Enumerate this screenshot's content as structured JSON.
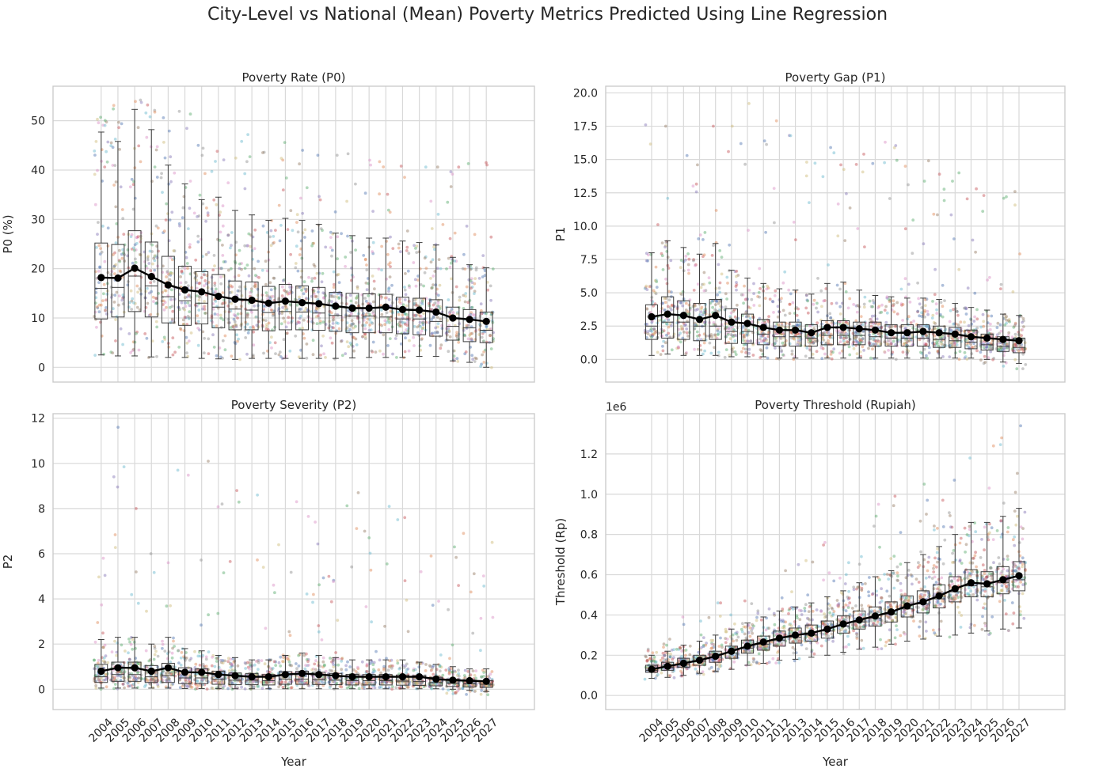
{
  "figure": {
    "title": "City-Level vs National (Mean) Poverty Metrics Predicted Using Line Regression"
  },
  "chart_data": [
    {
      "type": "box",
      "title": "Poverty Rate (P0)",
      "xlabel": "",
      "ylabel": "P0 (%)",
      "ylim": [
        -3,
        57
      ],
      "yticks": [
        0,
        10,
        20,
        30,
        40,
        50
      ],
      "ytick_labels": [
        "0",
        "10",
        "20",
        "30",
        "40",
        "50"
      ],
      "show_x_ticklabels": false,
      "offset_text": "",
      "categories": [
        "2004",
        "2005",
        "2006",
        "2007",
        "2008",
        "2009",
        "2010",
        "2011",
        "2012",
        "2013",
        "2014",
        "2015",
        "2016",
        "2017",
        "2018",
        "2019",
        "2020",
        "2021",
        "2022",
        "2023",
        "2024",
        "2025",
        "2026",
        "2027"
      ],
      "mean": [
        18.2,
        18.1,
        20.1,
        18.4,
        16.7,
        15.7,
        15.3,
        14.4,
        13.8,
        13.6,
        13.0,
        13.4,
        13.1,
        12.9,
        12.4,
        12.0,
        12.0,
        12.2,
        11.7,
        11.6,
        11.2,
        10.0,
        9.7,
        9.3
      ],
      "median": [
        16.0,
        16.2,
        18.5,
        16.5,
        14.3,
        13.5,
        13.0,
        12.2,
        11.8,
        11.6,
        11.1,
        11.3,
        11.2,
        11.0,
        10.5,
        10.4,
        10.4,
        10.2,
        9.8,
        9.8,
        9.3,
        8.3,
        8.0,
        7.5
      ],
      "q1": [
        9.8,
        10.2,
        11.3,
        10.2,
        9.0,
        8.5,
        8.8,
        8.0,
        7.6,
        7.6,
        7.4,
        7.6,
        7.6,
        7.5,
        7.3,
        7.0,
        7.0,
        7.0,
        6.8,
        6.6,
        6.3,
        5.5,
        5.2,
        5.0
      ],
      "q3": [
        25.2,
        24.9,
        27.7,
        25.4,
        22.5,
        20.5,
        19.4,
        18.8,
        17.5,
        17.3,
        16.4,
        16.8,
        16.5,
        16.2,
        15.2,
        15.0,
        14.9,
        14.8,
        14.2,
        14.0,
        13.7,
        12.2,
        11.7,
        11.2
      ],
      "whislo": [
        2.5,
        2.3,
        2.3,
        2.1,
        2.0,
        2.0,
        1.8,
        1.7,
        1.6,
        1.8,
        1.8,
        1.8,
        1.8,
        1.8,
        1.8,
        1.9,
        2.0,
        2.0,
        2.0,
        2.2,
        2.2,
        1.3,
        1.0,
        0.0
      ],
      "whishi": [
        47.7,
        45.8,
        52.3,
        48.2,
        41.0,
        37.2,
        34.0,
        34.5,
        31.8,
        30.9,
        29.8,
        30.2,
        29.8,
        29.0,
        27.2,
        26.7,
        26.2,
        26.2,
        25.6,
        25.3,
        24.8,
        22.3,
        20.8,
        20.2
      ],
      "spread_lo": [
        2.2,
        2.1,
        2.1,
        1.9,
        1.9,
        1.8,
        1.7,
        1.6,
        1.5,
        1.6,
        1.6,
        1.6,
        1.6,
        1.6,
        1.6,
        1.8,
        1.9,
        1.9,
        1.9,
        2.0,
        2.0,
        1.0,
        0.8,
        -0.3
      ],
      "spread_hi": [
        50.7,
        53.1,
        54.2,
        53.2,
        50.6,
        51.9,
        45.0,
        43.8,
        45.8,
        47.2,
        43.6,
        45.6,
        44.0,
        43.0,
        43.0,
        43.3,
        42.0,
        41.7,
        40.8,
        40.6,
        40.6,
        40.6,
        41.3,
        41.5
      ]
    },
    {
      "type": "box",
      "title": "Poverty Gap (P1)",
      "xlabel": "",
      "ylabel": "P1",
      "ylim": [
        -1.7,
        20.5
      ],
      "yticks": [
        0,
        2.5,
        5,
        7.5,
        10,
        12.5,
        15,
        17.5,
        20
      ],
      "ytick_labels": [
        "0.0",
        "2.5",
        "5.0",
        "7.5",
        "10.0",
        "12.5",
        "15.0",
        "17.5",
        "20.0"
      ],
      "show_x_ticklabels": false,
      "offset_text": "",
      "categories": [
        "2004",
        "2005",
        "2006",
        "2007",
        "2008",
        "2009",
        "2010",
        "2011",
        "2012",
        "2013",
        "2014",
        "2015",
        "2016",
        "2017",
        "2018",
        "2019",
        "2020",
        "2021",
        "2022",
        "2023",
        "2024",
        "2025",
        "2026",
        "2027"
      ],
      "mean": [
        3.2,
        3.4,
        3.3,
        3.0,
        3.3,
        2.8,
        2.7,
        2.4,
        2.2,
        2.2,
        2.0,
        2.4,
        2.4,
        2.3,
        2.2,
        2.0,
        2.0,
        2.1,
        2.0,
        1.9,
        1.7,
        1.6,
        1.5,
        1.4
      ],
      "median": [
        2.5,
        2.8,
        2.8,
        2.5,
        2.5,
        2.1,
        2.1,
        1.9,
        1.7,
        1.7,
        1.6,
        1.8,
        1.8,
        1.8,
        1.7,
        1.6,
        1.6,
        1.6,
        1.5,
        1.4,
        1.3,
        1.1,
        1.0,
        0.9
      ],
      "q1": [
        1.5,
        1.6,
        1.5,
        1.4,
        1.5,
        1.2,
        1.2,
        1.1,
        1.0,
        1.0,
        1.0,
        1.1,
        1.1,
        1.1,
        1.0,
        1.0,
        1.0,
        1.0,
        0.9,
        0.9,
        0.8,
        0.7,
        0.6,
        0.5
      ],
      "q3": [
        4.1,
        4.7,
        4.4,
        4.2,
        4.5,
        3.8,
        3.4,
        3.0,
        2.8,
        2.8,
        2.6,
        2.9,
        2.9,
        2.8,
        2.8,
        2.6,
        2.6,
        2.6,
        2.5,
        2.4,
        2.2,
        1.9,
        1.7,
        1.6
      ],
      "whislo": [
        0.3,
        0.4,
        0.3,
        0.3,
        0.3,
        0.2,
        0.2,
        0.2,
        0.1,
        0.1,
        0.1,
        0.1,
        0.1,
        0.1,
        0.1,
        0.1,
        0.1,
        0.1,
        0.1,
        0.1,
        0.1,
        0.0,
        -0.2,
        -0.3
      ],
      "whishi": [
        8.0,
        8.9,
        8.4,
        7.9,
        8.7,
        6.7,
        6.1,
        5.7,
        5.3,
        5.2,
        4.9,
        5.7,
        5.8,
        5.2,
        4.8,
        4.7,
        4.6,
        4.6,
        4.5,
        4.2,
        3.9,
        3.7,
        3.4,
        3.3
      ],
      "spread_lo": [
        0.2,
        0.3,
        0.2,
        0.2,
        0.2,
        0.1,
        0.1,
        0.1,
        0.0,
        0.0,
        0.0,
        0.0,
        0.0,
        0.0,
        0.0,
        0.0,
        0.0,
        0.0,
        0.0,
        0.0,
        0.0,
        -0.4,
        -0.6,
        -0.8
      ],
      "spread_hi": [
        17.6,
        17.5,
        15.3,
        14.6,
        17.5,
        17.5,
        19.2,
        16.4,
        17.9,
        16.8,
        14.8,
        15.9,
        14.6,
        15.4,
        14.7,
        16.3,
        14.5,
        14.9,
        13.9,
        14.0,
        12.8,
        12.3,
        12.2,
        12.6
      ]
    },
    {
      "type": "box",
      "title": "Poverty Severity (P2)",
      "xlabel": "Year",
      "ylabel": "P2",
      "ylim": [
        -0.9,
        12.2
      ],
      "yticks": [
        0,
        2,
        4,
        6,
        8,
        10,
        12
      ],
      "ytick_labels": [
        "0",
        "2",
        "4",
        "6",
        "8",
        "10",
        "12"
      ],
      "show_x_ticklabels": true,
      "offset_text": "",
      "categories": [
        "2004",
        "2005",
        "2006",
        "2007",
        "2008",
        "2009",
        "2010",
        "2011",
        "2012",
        "2013",
        "2014",
        "2015",
        "2016",
        "2017",
        "2018",
        "2019",
        "2020",
        "2021",
        "2022",
        "2023",
        "2024",
        "2025",
        "2026",
        "2027"
      ],
      "mean": [
        0.8,
        0.95,
        0.95,
        0.8,
        0.95,
        0.75,
        0.75,
        0.65,
        0.6,
        0.55,
        0.55,
        0.65,
        0.7,
        0.65,
        0.6,
        0.55,
        0.55,
        0.55,
        0.55,
        0.55,
        0.45,
        0.4,
        0.38,
        0.35
      ],
      "median": [
        0.55,
        0.65,
        0.65,
        0.55,
        0.6,
        0.5,
        0.5,
        0.45,
        0.4,
        0.4,
        0.38,
        0.45,
        0.45,
        0.42,
        0.4,
        0.38,
        0.38,
        0.38,
        0.36,
        0.34,
        0.3,
        0.26,
        0.24,
        0.22
      ],
      "q1": [
        0.3,
        0.35,
        0.35,
        0.3,
        0.3,
        0.25,
        0.25,
        0.22,
        0.2,
        0.2,
        0.19,
        0.22,
        0.22,
        0.21,
        0.2,
        0.19,
        0.19,
        0.19,
        0.18,
        0.17,
        0.15,
        0.12,
        0.1,
        0.08
      ],
      "q3": [
        1.1,
        1.2,
        1.2,
        1.05,
        1.15,
        0.95,
        0.9,
        0.8,
        0.72,
        0.7,
        0.65,
        0.78,
        0.8,
        0.75,
        0.7,
        0.66,
        0.65,
        0.65,
        0.63,
        0.6,
        0.53,
        0.45,
        0.4,
        0.38
      ],
      "whislo": [
        0.05,
        0.05,
        0.05,
        0.05,
        0.05,
        0.03,
        0.03,
        0.03,
        0.02,
        0.02,
        0.02,
        0.02,
        0.02,
        0.02,
        0.02,
        0.02,
        0.02,
        0.02,
        0.02,
        0.02,
        0.02,
        0.0,
        -0.05,
        -0.1
      ],
      "whishi": [
        2.2,
        2.3,
        2.3,
        2.0,
        2.3,
        1.8,
        1.7,
        1.5,
        1.4,
        1.3,
        1.3,
        1.5,
        1.6,
        1.5,
        1.4,
        1.3,
        1.3,
        1.3,
        1.3,
        1.2,
        1.1,
        1.0,
        0.9,
        0.9
      ],
      "spread_lo": [
        0.0,
        0.0,
        0.0,
        0.0,
        0.0,
        0.0,
        0.0,
        0.0,
        0.0,
        0.0,
        0.0,
        0.0,
        0.0,
        0.0,
        0.0,
        0.0,
        0.0,
        0.0,
        0.0,
        0.0,
        0.0,
        -0.2,
        -0.25,
        -0.3
      ],
      "spread_hi": [
        5.8,
        11.6,
        8.0,
        6.0,
        5.6,
        9.7,
        10.1,
        8.2,
        8.8,
        8.6,
        5.4,
        6.4,
        8.3,
        7.4,
        5.0,
        8.7,
        7.0,
        8.1,
        7.6,
        5.2,
        5.9,
        6.3,
        6.9,
        6.5
      ]
    },
    {
      "type": "box",
      "title": "Poverty Threshold (Rupiah)",
      "xlabel": "Year",
      "ylabel": "Threshold (Rp)",
      "ylim": [
        -0.07,
        1.4
      ],
      "yticks": [
        0,
        0.2,
        0.4,
        0.6,
        0.8,
        1.0,
        1.2
      ],
      "ytick_labels": [
        "0.0",
        "0.2",
        "0.4",
        "0.6",
        "0.8",
        "1.0",
        "1.2"
      ],
      "show_x_ticklabels": true,
      "offset_text": "1e6",
      "categories": [
        "2004",
        "2005",
        "2006",
        "2007",
        "2008",
        "2009",
        "2010",
        "2011",
        "2012",
        "2013",
        "2014",
        "2015",
        "2016",
        "2017",
        "2018",
        "2019",
        "2020",
        "2021",
        "2022",
        "2023",
        "2024",
        "2025",
        "2026",
        "2027"
      ],
      "mean": [
        0.13,
        0.145,
        0.16,
        0.175,
        0.195,
        0.22,
        0.245,
        0.265,
        0.285,
        0.3,
        0.31,
        0.33,
        0.355,
        0.375,
        0.395,
        0.415,
        0.445,
        0.465,
        0.495,
        0.53,
        0.56,
        0.555,
        0.575,
        0.595
      ],
      "median": [
        0.125,
        0.14,
        0.155,
        0.17,
        0.19,
        0.21,
        0.235,
        0.255,
        0.275,
        0.29,
        0.3,
        0.32,
        0.345,
        0.365,
        0.385,
        0.405,
        0.43,
        0.455,
        0.48,
        0.515,
        0.545,
        0.54,
        0.56,
        0.575
      ],
      "q1": [
        0.115,
        0.125,
        0.14,
        0.15,
        0.165,
        0.185,
        0.21,
        0.225,
        0.245,
        0.26,
        0.27,
        0.285,
        0.31,
        0.33,
        0.345,
        0.365,
        0.39,
        0.41,
        0.435,
        0.465,
        0.49,
        0.49,
        0.505,
        0.52
      ],
      "q3": [
        0.15,
        0.165,
        0.185,
        0.2,
        0.22,
        0.245,
        0.275,
        0.295,
        0.32,
        0.335,
        0.35,
        0.37,
        0.395,
        0.42,
        0.44,
        0.465,
        0.495,
        0.52,
        0.55,
        0.59,
        0.625,
        0.615,
        0.64,
        0.665
      ],
      "whislo": [
        0.085,
        0.09,
        0.1,
        0.11,
        0.12,
        0.13,
        0.15,
        0.16,
        0.175,
        0.18,
        0.19,
        0.2,
        0.215,
        0.23,
        0.24,
        0.255,
        0.27,
        0.28,
        0.295,
        0.3,
        0.31,
        0.32,
        0.33,
        0.335
      ],
      "whishi": [
        0.2,
        0.22,
        0.25,
        0.27,
        0.3,
        0.33,
        0.36,
        0.39,
        0.42,
        0.44,
        0.46,
        0.49,
        0.52,
        0.56,
        0.59,
        0.62,
        0.66,
        0.7,
        0.74,
        0.8,
        0.86,
        0.86,
        0.89,
        0.93
      ],
      "spread_lo": [
        0.07,
        0.08,
        0.09,
        0.1,
        0.11,
        0.12,
        0.14,
        0.15,
        0.16,
        0.17,
        0.18,
        0.19,
        0.2,
        0.21,
        0.22,
        0.23,
        0.25,
        0.26,
        0.27,
        0.28,
        0.29,
        0.3,
        0.31,
        0.32
      ],
      "spread_hi": [
        0.23,
        0.28,
        0.39,
        0.37,
        0.46,
        0.4,
        0.47,
        0.43,
        0.62,
        0.65,
        0.67,
        0.76,
        0.66,
        0.69,
        0.95,
        0.99,
        0.81,
        1.05,
        0.97,
        1.07,
        1.18,
        1.24,
        1.28,
        1.34
      ]
    }
  ]
}
